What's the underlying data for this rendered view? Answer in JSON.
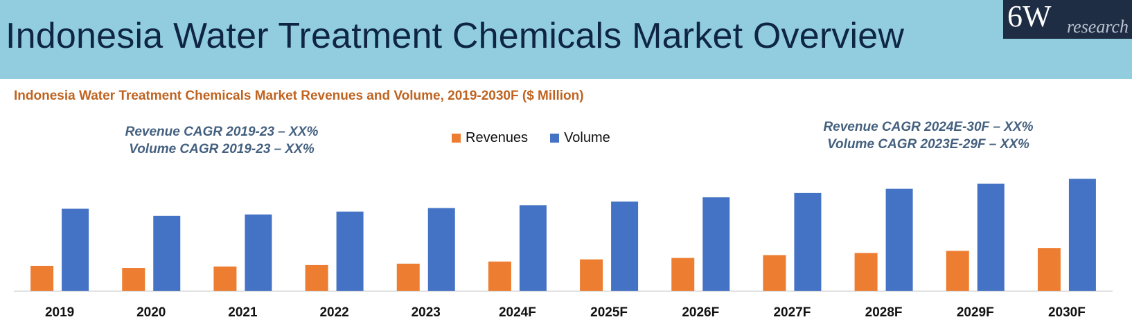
{
  "header": {
    "title": "Indonesia Water Treatment Chemicals Market Overview",
    "logo_main": "6W",
    "logo_sub": "research"
  },
  "colors": {
    "header_bg": "#92cddf",
    "revenues": "#ed7d31",
    "volume": "#4472c4",
    "chart_title": "#c0631f",
    "cagr_text": "#44607f"
  },
  "annotations": {
    "left_line1": "Revenue CAGR 2019-23 –  XX%",
    "left_line2": "Volume CAGR 2019-23 –  XX%",
    "right_line1": "Revenue CAGR 2024E-30F –  XX%",
    "right_line2": "Volume CAGR 2023E-29F –  XX%"
  },
  "chart_data": {
    "type": "bar",
    "title": "Indonesia Water Treatment Chemicals Market Revenues and Volume, 2019-2030F ($ Million)",
    "xlabel": "",
    "ylabel": "",
    "ylim": [
      0,
      165
    ],
    "grid": false,
    "legend_position": "top-center",
    "categories": [
      "2019",
      "2020",
      "2021",
      "2022",
      "2023",
      "2024F",
      "2025F",
      "2026F",
      "2027F",
      "2028F",
      "2029F",
      "2030F"
    ],
    "series": [
      {
        "name": "Revenues",
        "values": [
          35,
          32,
          34,
          36,
          38,
          41,
          44,
          46,
          50,
          53,
          56,
          60
        ]
      },
      {
        "name": "Volume",
        "values": [
          115,
          105,
          107,
          111,
          116,
          120,
          125,
          131,
          137,
          143,
          150,
          157
        ]
      }
    ]
  }
}
